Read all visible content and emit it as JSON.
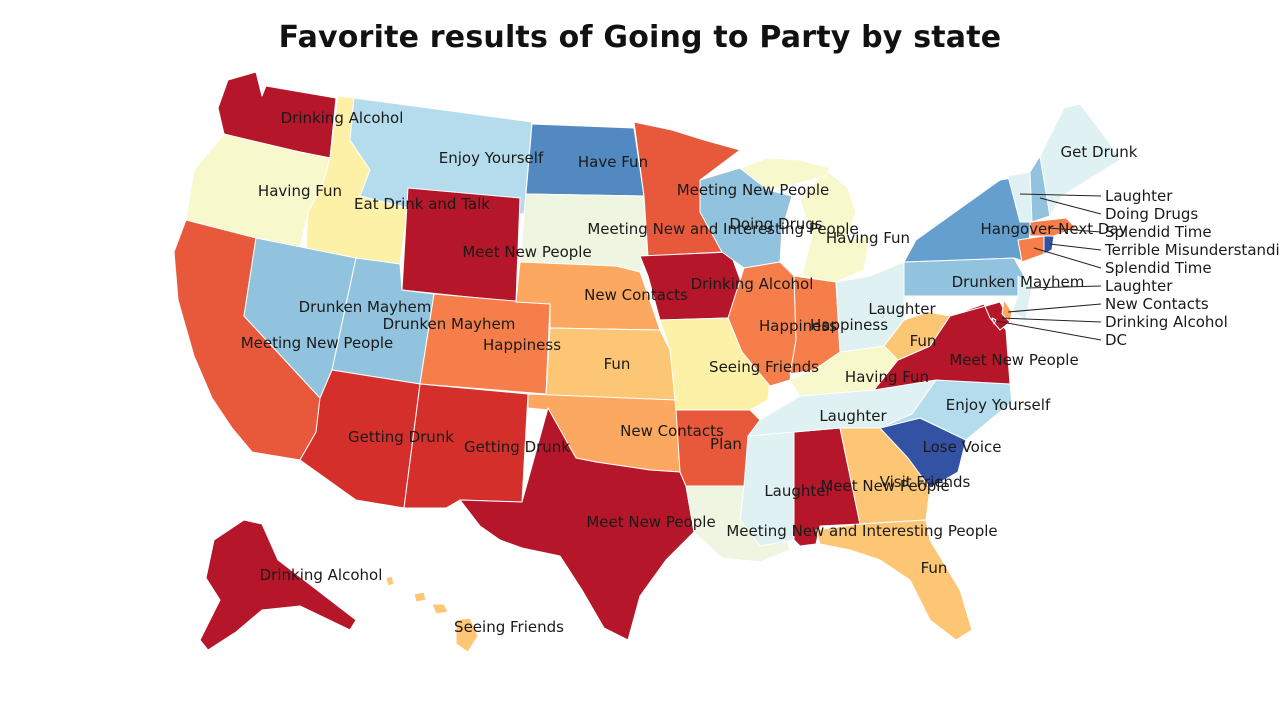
{
  "title": "Favorite results of Going to Party by state",
  "colors": {
    "dark_red": "#b5162a",
    "red": "#d42f2a",
    "orange_red": "#e8593b",
    "orange": "#f57e4b",
    "light_orange": "#fca860",
    "tan": "#fdc675",
    "pale_yellow": "#fdf1a7",
    "cream": "#f7f8cc",
    "pale_green": "#eef5e0",
    "pale_cyan": "#dff1f2",
    "light_blue": "#b5dcec",
    "sky_blue": "#92c3de",
    "mid_blue": "#649fce",
    "blue": "#5289c0",
    "dark_blue": "#3352a4"
  },
  "labels": {
    "wa": "Drinking Alcohol",
    "mt": "Enjoy Yourself",
    "nd": "Have Fun",
    "me": "Get Drunk",
    "or": "Having Fun",
    "id": "Eat Drink and Talk",
    "mn": "Meeting New People",
    "wi": "Doing Drugs",
    "sd": "Meeting New and Interesting People",
    "mi": "Having Fun",
    "ny": "Hangover Next Day",
    "wy": "Meet New People",
    "ia": "Drinking Alcohol",
    "pa": "Drunken Mayhem",
    "ne": "New Contacts",
    "nv": "Drunken Mayhem",
    "ut": "Drunken Mayhem",
    "oh": "Laughter",
    "il": "Happiness",
    "in": "Happiness",
    "ca": "Meeting New People",
    "co": "Happiness",
    "wv": "Fun",
    "va": "Meet New People",
    "ks": "Fun",
    "mo": "Seeing Friends",
    "ky": "Having Fun",
    "nc": "Enjoy Yourself",
    "tn": "Laughter",
    "az": "Getting Drunk",
    "nm": "Getting Drunk",
    "ok": "New Contacts",
    "ar": "Plan",
    "sc": "Lose Voice",
    "ms": "Laughter",
    "al": "Meet New People",
    "ga": "Visit Friends",
    "tx": "Meet New People",
    "la": "Meeting New and Interesting People",
    "fl": "Fun",
    "ak": "Drinking Alcohol",
    "hi": "Seeing Friends"
  },
  "callouts": [
    {
      "state": "VT",
      "label": "Laughter"
    },
    {
      "state": "NH",
      "label": "Doing Drugs"
    },
    {
      "state": "MA",
      "label": "Splendid Time"
    },
    {
      "state": "RI",
      "label": "Terrible Misunderstanding"
    },
    {
      "state": "CT",
      "label": "Splendid Time"
    },
    {
      "state": "NJ",
      "label": "Laughter"
    },
    {
      "state": "DE",
      "label": "New Contacts"
    },
    {
      "state": "MD",
      "label": "Drinking Alcohol"
    },
    {
      "state": "DC",
      "label": "DC"
    }
  ]
}
